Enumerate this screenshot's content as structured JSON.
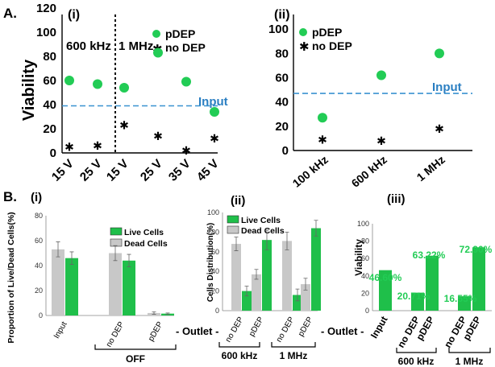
{
  "figure": {
    "panel_A": "A.",
    "panel_B": "B."
  },
  "colors": {
    "green": "#22cc55",
    "bar_green": "#1fbf4a",
    "gray": "#c8c8c8",
    "input_line": "#3a93d0",
    "input_text": "#2b7fc2"
  },
  "chart_data": [
    {
      "id": "A_i",
      "type": "scatter",
      "panel_label": "(i)",
      "ylabel": "Viability",
      "ylim": [
        0,
        120
      ],
      "yticks": [
        0,
        20,
        40,
        60,
        80,
        100,
        120
      ],
      "categories": [
        "15 V",
        "25 V",
        "15 V",
        "25 V",
        "35 V",
        "45 V"
      ],
      "group_labels": [
        "600 kHz",
        "1 MHz"
      ],
      "input_value": 39,
      "input_label": "Input",
      "legend": [
        "pDEP",
        "no DEP"
      ],
      "series": [
        {
          "name": "pDEP",
          "marker": "circle",
          "values": [
            60,
            57,
            54,
            83,
            59,
            34
          ]
        },
        {
          "name": "no DEP",
          "marker": "star",
          "values": [
            5,
            6,
            23,
            14,
            2,
            12
          ]
        }
      ]
    },
    {
      "id": "A_ii",
      "type": "scatter",
      "panel_label": "(ii)",
      "ylim": [
        0,
        120
      ],
      "yticks": [
        0,
        20,
        40,
        60,
        80,
        100
      ],
      "categories": [
        "100 kHz",
        "600 kHz",
        "1 MHz"
      ],
      "input_value": 47,
      "input_label": "Input",
      "legend": [
        "pDEP",
        "no DEP"
      ],
      "series": [
        {
          "name": "pDEP",
          "marker": "circle",
          "values": [
            27,
            62,
            80
          ]
        },
        {
          "name": "no DEP",
          "marker": "star",
          "values": [
            9,
            8,
            18
          ]
        }
      ]
    },
    {
      "id": "B_i",
      "type": "bar",
      "panel_label": "(i)",
      "ylabel": "Proportion of Live/Dead Cells(%)",
      "ylim": [
        0,
        80
      ],
      "yticks": [
        0,
        20,
        40,
        60,
        80
      ],
      "categories": [
        "Input",
        "no DEP",
        "pDEP"
      ],
      "group_label": "OFF",
      "outlet_label": "- Outlet -",
      "legend": [
        "Live Cells",
        "Dead Cells"
      ],
      "series": [
        {
          "name": "Dead Cells",
          "values": [
            53,
            50,
            2
          ],
          "errors": [
            6,
            6,
            1
          ]
        },
        {
          "name": "Live Cells",
          "values": [
            46,
            44,
            1.5
          ],
          "errors": [
            5,
            5,
            0.5
          ]
        }
      ]
    },
    {
      "id": "B_ii",
      "type": "bar",
      "panel_label": "(ii)",
      "ylabel": "Cells Distribution(%)",
      "ylim": [
        0,
        100
      ],
      "yticks": [
        0,
        20,
        40,
        60,
        80,
        100
      ],
      "categories": [
        "no DEP",
        "pDEP",
        "no DEP",
        "pDEP"
      ],
      "group_labels": [
        "600 kHz",
        "1 MHz"
      ],
      "outlet_label": "- Outlet -",
      "legend": [
        "Live Cells",
        "Dead Cells"
      ],
      "series": [
        {
          "name": "Dead Cells",
          "values": [
            68,
            37,
            71,
            27
          ],
          "errors": [
            7,
            5,
            9,
            6
          ]
        },
        {
          "name": "Live Cells",
          "values": [
            20,
            72,
            16,
            84
          ],
          "errors": [
            5,
            10,
            6,
            8
          ]
        }
      ]
    },
    {
      "id": "B_iii",
      "type": "bar",
      "panel_label": "(iii)",
      "ylabel": "Viability",
      "ylim": [
        0,
        100
      ],
      "yticks": [
        0,
        20,
        40,
        60,
        80,
        100
      ],
      "categories": [
        "Input",
        "no DEP",
        "pDEP",
        "no DEP",
        "pDEP"
      ],
      "group_labels": [
        "600 kHz",
        "1 MHz"
      ],
      "values": [
        46.6,
        20.71,
        63.22,
        16.55,
        72.9
      ],
      "data_labels": [
        "46.60%",
        "20.71%",
        "63.22%",
        "16.55%",
        "72.90%"
      ]
    }
  ]
}
